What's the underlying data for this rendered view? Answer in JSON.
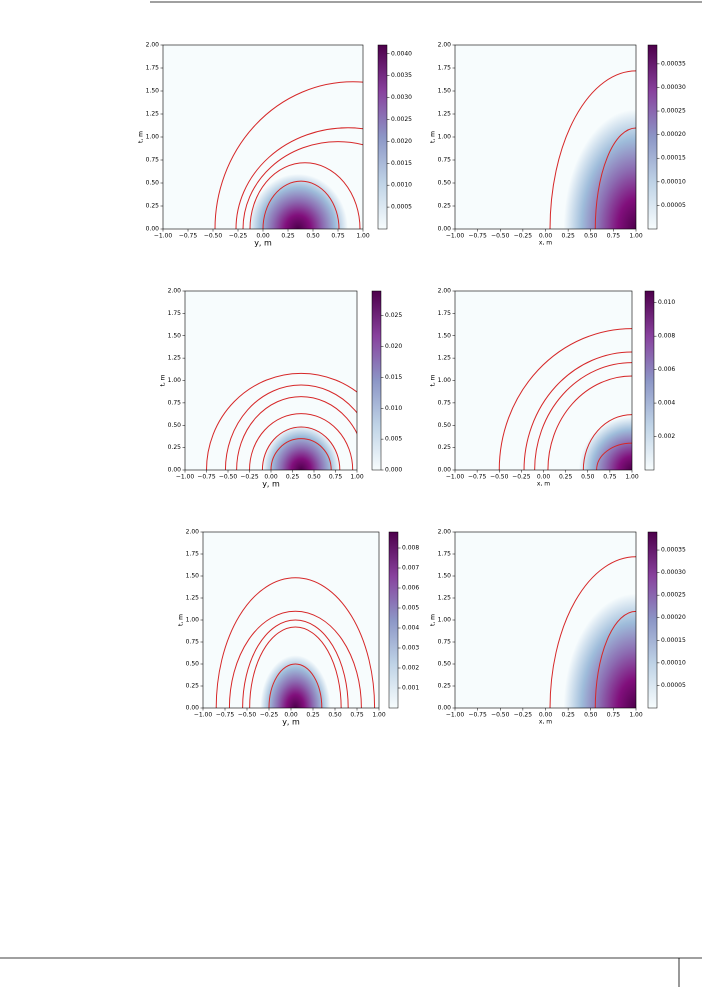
{
  "chart_data": [
    {
      "type": "heatmap",
      "xlabel": "y, m",
      "ylabel": "t, m",
      "xlim": [
        -1,
        1
      ],
      "ylim": [
        0,
        2
      ],
      "xticks": [
        {
          "value": -1,
          "label": "−1.00"
        },
        {
          "value": -0.75,
          "label": "−0.75"
        },
        {
          "value": -0.5,
          "label": "−0.50"
        },
        {
          "value": -0.25,
          "label": "−0.25"
        },
        {
          "value": 0,
          "label": "0.00"
        },
        {
          "value": 0.25,
          "label": "0.25"
        },
        {
          "value": 0.5,
          "label": "0.50"
        },
        {
          "value": 0.75,
          "label": "0.75"
        },
        {
          "value": 1,
          "label": "1.00"
        }
      ],
      "yticks": [
        {
          "value": 0,
          "label": "0.00"
        },
        {
          "value": 0.25,
          "label": "0.25"
        },
        {
          "value": 0.5,
          "label": "0.50"
        },
        {
          "value": 0.75,
          "label": "0.75"
        },
        {
          "value": 1,
          "label": "1.00"
        },
        {
          "value": 1.25,
          "label": "1.25"
        },
        {
          "value": 1.5,
          "label": "1.50"
        },
        {
          "value": 1.75,
          "label": "1.75"
        },
        {
          "value": 2,
          "label": "2.00"
        }
      ],
      "clim": [
        0,
        0.0042
      ],
      "cticks": [
        0.0005,
        {
          "value": 0.001,
          "label": "0.0010"
        },
        0.0015,
        {
          "value": 0.002,
          "label": "0.0020"
        },
        0.0025,
        {
          "value": 0.003,
          "label": "0.0030"
        },
        0.0035,
        {
          "value": 0.004,
          "label": "0.0040"
        }
      ],
      "contour_color": "#d62728"
    },
    {
      "type": "heatmap",
      "xlabel": "x, m",
      "ylabel": "t, m",
      "xlim": [
        -1,
        1
      ],
      "ylim": [
        0,
        2
      ],
      "xticks": [
        {
          "value": -1,
          "label": "−1.00"
        },
        {
          "value": -0.75,
          "label": "−0.75"
        },
        {
          "value": -0.5,
          "label": "−0.50"
        },
        {
          "value": -0.25,
          "label": "−0.25"
        },
        {
          "value": 0,
          "label": "0.00"
        },
        {
          "value": 0.25,
          "label": "0.25"
        },
        {
          "value": 0.5,
          "label": "0.50"
        },
        {
          "value": 0.75,
          "label": "0.75"
        },
        {
          "value": 1,
          "label": "1.00"
        }
      ],
      "yticks": [
        {
          "value": 0,
          "label": "0.00"
        },
        {
          "value": 0.25,
          "label": "0.25"
        },
        {
          "value": 0.5,
          "label": "0.50"
        },
        {
          "value": 0.75,
          "label": "0.75"
        },
        {
          "value": 1,
          "label": "1.00"
        },
        {
          "value": 1.25,
          "label": "1.25"
        },
        {
          "value": 1.5,
          "label": "1.50"
        },
        {
          "value": 1.75,
          "label": "1.75"
        },
        {
          "value": 2,
          "label": "2.00"
        }
      ],
      "clim": [
        0,
        0.00039
      ],
      "cticks": [
        5e-05,
        {
          "value": 0.0001,
          "label": "0.00010"
        },
        0.00015,
        {
          "value": 0.0002,
          "label": "0.00020"
        },
        0.00025,
        {
          "value": 0.0003,
          "label": "0.00030"
        },
        0.00035
      ],
      "contour_color": "#d62728"
    },
    {
      "type": "heatmap",
      "xlabel": "y, m",
      "ylabel": "t, m",
      "xlim": [
        -1,
        1
      ],
      "ylim": [
        0,
        2
      ],
      "xticks": [
        {
          "value": -1,
          "label": "−1.00"
        },
        {
          "value": -0.75,
          "label": "−0.75"
        },
        {
          "value": -0.5,
          "label": "−0.50"
        },
        {
          "value": -0.25,
          "label": "−0.25"
        },
        {
          "value": 0,
          "label": "0.00"
        },
        {
          "value": 0.25,
          "label": "0.25"
        },
        {
          "value": 0.5,
          "label": "0.50"
        },
        {
          "value": 0.75,
          "label": "0.75"
        },
        {
          "value": 1,
          "label": "1.00"
        }
      ],
      "yticks": [
        {
          "value": 0,
          "label": "0.00"
        },
        {
          "value": 0.25,
          "label": "0.25"
        },
        {
          "value": 0.5,
          "label": "0.50"
        },
        {
          "value": 0.75,
          "label": "0.75"
        },
        {
          "value": 1,
          "label": "1.00"
        },
        {
          "value": 1.25,
          "label": "1.25"
        },
        {
          "value": 1.5,
          "label": "1.50"
        },
        {
          "value": 1.75,
          "label": "1.75"
        },
        {
          "value": 2,
          "label": "2.00"
        }
      ],
      "clim": [
        0,
        0.029
      ],
      "cticks": [
        {
          "value": 0,
          "label": "0.000"
        },
        0.005,
        {
          "value": 0.01,
          "label": "0.010"
        },
        0.015,
        {
          "value": 0.02,
          "label": "0.020"
        },
        0.025
      ],
      "contour_color": "#d62728"
    },
    {
      "type": "heatmap",
      "xlabel": "x, m",
      "ylabel": "t, m",
      "xlim": [
        -1,
        1
      ],
      "ylim": [
        0,
        2
      ],
      "xticks": [
        {
          "value": -1,
          "label": "−1.00"
        },
        {
          "value": -0.75,
          "label": "−0.75"
        },
        {
          "value": -0.5,
          "label": "−0.50"
        },
        {
          "value": -0.25,
          "label": "−0.25"
        },
        {
          "value": 0,
          "label": "0.00"
        },
        {
          "value": 0.25,
          "label": "0.25"
        },
        {
          "value": 0.5,
          "label": "0.50"
        },
        {
          "value": 0.75,
          "label": "0.75"
        },
        {
          "value": 1,
          "label": "1.00"
        }
      ],
      "yticks": [
        {
          "value": 0,
          "label": "0.00"
        },
        {
          "value": 0.25,
          "label": "0.25"
        },
        {
          "value": 0.5,
          "label": "0.50"
        },
        {
          "value": 0.75,
          "label": "0.75"
        },
        {
          "value": 1,
          "label": "1.00"
        },
        {
          "value": 1.25,
          "label": "1.25"
        },
        {
          "value": 1.5,
          "label": "1.50"
        },
        {
          "value": 1.75,
          "label": "1.75"
        },
        {
          "value": 2,
          "label": "2.00"
        }
      ],
      "clim": [
        0,
        0.0107
      ],
      "cticks": [
        0.002,
        0.004,
        0.006,
        0.008,
        {
          "value": 0.01,
          "label": "0.010"
        }
      ],
      "contour_color": "#d62728"
    },
    {
      "type": "heatmap",
      "xlabel": "y, m",
      "ylabel": "t, m",
      "xlim": [
        -1,
        1
      ],
      "ylim": [
        0,
        2
      ],
      "xticks": [
        {
          "value": -1,
          "label": "−1.00"
        },
        {
          "value": -0.75,
          "label": "−0.75"
        },
        {
          "value": -0.5,
          "label": "−0.50"
        },
        {
          "value": -0.25,
          "label": "−0.25"
        },
        {
          "value": 0,
          "label": "0.00"
        },
        {
          "value": 0.25,
          "label": "0.25"
        },
        {
          "value": 0.5,
          "label": "0.50"
        },
        {
          "value": 0.75,
          "label": "0.75"
        },
        {
          "value": 1,
          "label": "1.00"
        }
      ],
      "yticks": [
        {
          "value": 0,
          "label": "0.00"
        },
        {
          "value": 0.25,
          "label": "0.25"
        },
        {
          "value": 0.5,
          "label": "0.50"
        },
        {
          "value": 0.75,
          "label": "0.75"
        },
        {
          "value": 1,
          "label": "1.00"
        },
        {
          "value": 1.25,
          "label": "1.25"
        },
        {
          "value": 1.5,
          "label": "1.50"
        },
        {
          "value": 1.75,
          "label": "1.75"
        },
        {
          "value": 2,
          "label": "2.00"
        }
      ],
      "clim": [
        0,
        0.0088
      ],
      "cticks": [
        0.001,
        0.002,
        0.003,
        0.004,
        0.005,
        0.006,
        0.007,
        0.008
      ],
      "contour_color": "#d62728"
    },
    {
      "type": "heatmap",
      "xlabel": "x, m",
      "ylabel": "t, m",
      "xlim": [
        -1,
        1
      ],
      "ylim": [
        0,
        2
      ],
      "xticks": [
        {
          "value": -1,
          "label": "−1.00"
        },
        {
          "value": -0.75,
          "label": "−0.75"
        },
        {
          "value": -0.5,
          "label": "−0.50"
        },
        {
          "value": -0.25,
          "label": "−0.25"
        },
        {
          "value": 0,
          "label": "0.00"
        },
        {
          "value": 0.25,
          "label": "0.25"
        },
        {
          "value": 0.5,
          "label": "0.50"
        },
        {
          "value": 0.75,
          "label": "0.75"
        },
        {
          "value": 1,
          "label": "1.00"
        }
      ],
      "yticks": [
        {
          "value": 0,
          "label": "0.00"
        },
        {
          "value": 0.25,
          "label": "0.25"
        },
        {
          "value": 0.5,
          "label": "0.50"
        },
        {
          "value": 0.75,
          "label": "0.75"
        },
        {
          "value": 1,
          "label": "1.00"
        },
        {
          "value": 1.25,
          "label": "1.25"
        },
        {
          "value": 1.5,
          "label": "1.50"
        },
        {
          "value": 1.75,
          "label": "1.75"
        },
        {
          "value": 2,
          "label": "2.00"
        }
      ],
      "clim": [
        0,
        0.00039
      ],
      "cticks": [
        5e-05,
        {
          "value": 0.0001,
          "label": "0.00010"
        },
        0.00015,
        {
          "value": 0.0002,
          "label": "0.00020"
        },
        0.00025,
        {
          "value": 0.0003,
          "label": "0.00030"
        },
        0.00035
      ],
      "contour_color": "#d62728"
    }
  ]
}
